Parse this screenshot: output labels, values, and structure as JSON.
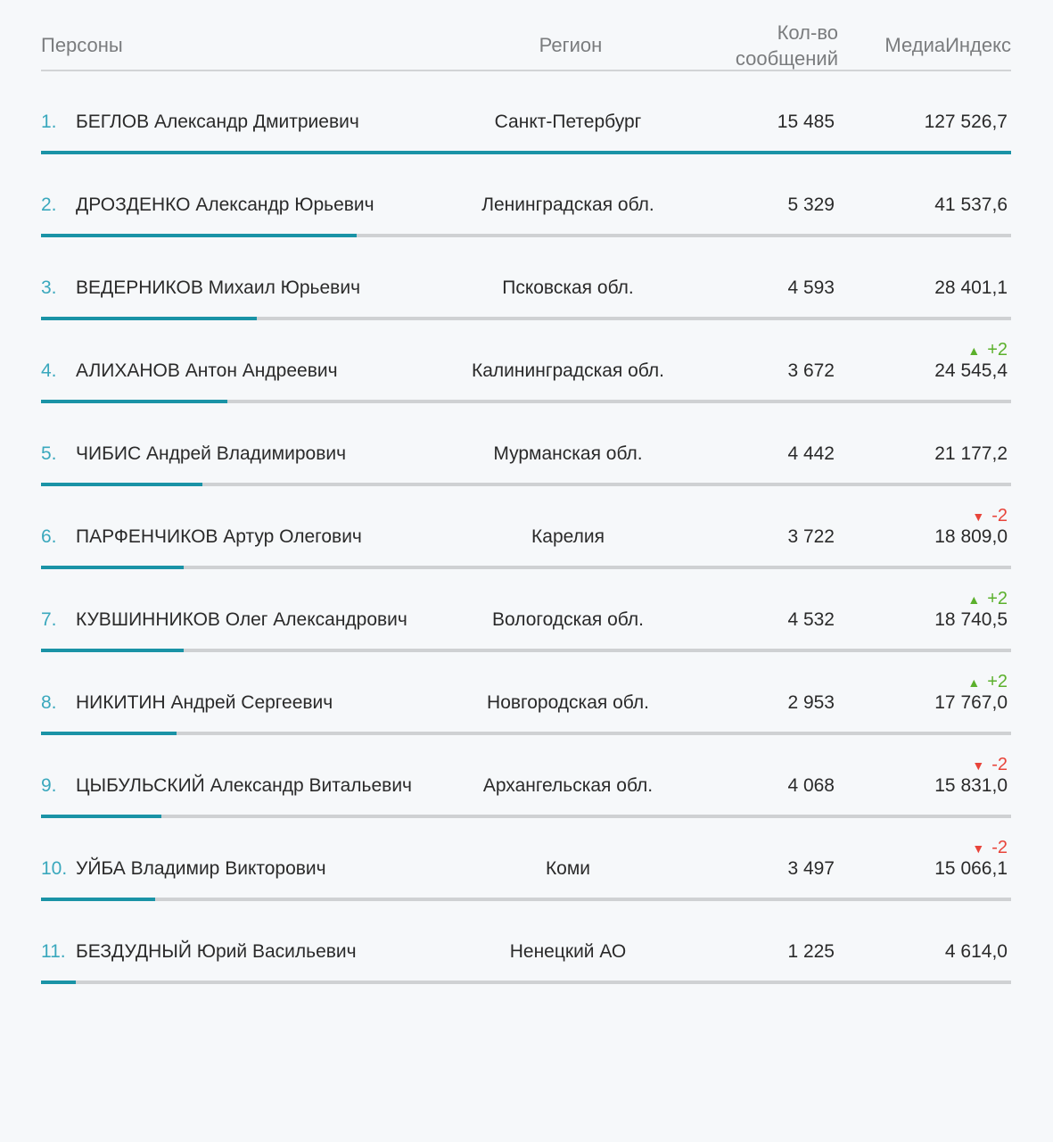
{
  "header": {
    "persons": "Персоны",
    "region": "Регион",
    "count_line1": "Кол-во",
    "count_line2": "сообщений",
    "media": "МедиаИндекс"
  },
  "colors": {
    "accent": "#1a93a6",
    "up": "#5bb02c",
    "down": "#e8443a"
  },
  "rows": [
    {
      "num": "1.",
      "name": "БЕГЛОВ Александр Дмитриевич",
      "region": "Санкт-Петербург",
      "count": "15 485",
      "media": "127 526,7",
      "value": 127526.7,
      "change": ""
    },
    {
      "num": "2.",
      "name": "ДРОЗДЕНКО Александр Юрьевич",
      "region": "Ленинградская обл.",
      "count": "5 329",
      "media": "41 537,6",
      "value": 41537.6,
      "change": ""
    },
    {
      "num": "3.",
      "name": "ВЕДЕРНИКОВ Михаил Юрьевич",
      "region": "Псковская обл.",
      "count": "4 593",
      "media": "28 401,1",
      "value": 28401.1,
      "change": ""
    },
    {
      "num": "4.",
      "name": "АЛИХАНОВ Антон Андреевич",
      "region": "Калининградская обл.",
      "count": "3 672",
      "media": "24 545,4",
      "value": 24545.4,
      "change": "+2",
      "dir": "up"
    },
    {
      "num": "5.",
      "name": "ЧИБИС Андрей Владимирович",
      "region": "Мурманская обл.",
      "count": "4 442",
      "media": "21 177,2",
      "value": 21177.2,
      "change": ""
    },
    {
      "num": "6.",
      "name": "ПАРФЕНЧИКОВ Артур Олегович",
      "region": "Карелия",
      "count": "3 722",
      "media": "18 809,0",
      "value": 18809.0,
      "change": "-2",
      "dir": "down"
    },
    {
      "num": "7.",
      "name": "КУВШИННИКОВ Олег Александрович",
      "region": "Вологодская обл.",
      "count": "4 532",
      "media": "18 740,5",
      "value": 18740.5,
      "change": "+2",
      "dir": "up"
    },
    {
      "num": "8.",
      "name": "НИКИТИН Андрей Сергеевич",
      "region": "Новгородская обл.",
      "count": "2 953",
      "media": "17 767,0",
      "value": 17767.0,
      "change": "+2",
      "dir": "up"
    },
    {
      "num": "9.",
      "name": "ЦЫБУЛЬСКИЙ Александр Витальевич",
      "region": "Архангельская обл.",
      "count": "4 068",
      "media": "15 831,0",
      "value": 15831.0,
      "change": "-2",
      "dir": "down"
    },
    {
      "num": "10.",
      "name": "УЙБА Владимир Викторович",
      "region": "Коми",
      "count": "3 497",
      "media": "15 066,1",
      "value": 15066.1,
      "change": "-2",
      "dir": "down"
    },
    {
      "num": "11.",
      "name": "БЕЗДУДНЫЙ Юрий Васильевич",
      "region": "Ненецкий АО",
      "count": "1 225",
      "media": "4 614,0",
      "value": 4614.0,
      "change": ""
    }
  ]
}
